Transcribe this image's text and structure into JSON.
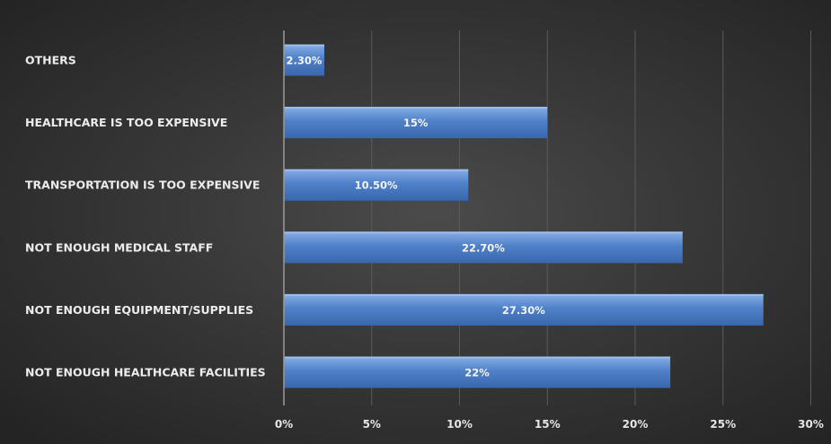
{
  "chart_data": {
    "type": "bar",
    "orientation": "horizontal",
    "title": "",
    "xlabel": "",
    "ylabel": "",
    "categories": [
      "OTHERS",
      "HEALTHCARE IS TOO EXPENSIVE",
      "TRANSPORTATION IS TOO EXPENSIVE",
      "NOT ENOUGH MEDICAL STAFF",
      "NOT ENOUGH EQUIPMENT/SUPPLIES",
      "NOT ENOUGH HEALTHCARE FACILITIES"
    ],
    "values": [
      2.3,
      15,
      10.5,
      22.7,
      27.3,
      22
    ],
    "data_labels": [
      "2.30%",
      "15%",
      "10.50%",
      "22.70%",
      "27.30%",
      "22%"
    ],
    "x_ticks": [
      "0%",
      "5%",
      "10%",
      "15%",
      "20%",
      "25%",
      "30%"
    ],
    "xlim": [
      0,
      30
    ],
    "grid": "vertical",
    "legend": "none",
    "colors": {
      "bar_top": "#86aee6",
      "bar_mid": "#4f81c9",
      "bar_bottom": "#3a67ad",
      "gridline": "#5a5a5a",
      "axis": "#9a9a9a"
    }
  }
}
